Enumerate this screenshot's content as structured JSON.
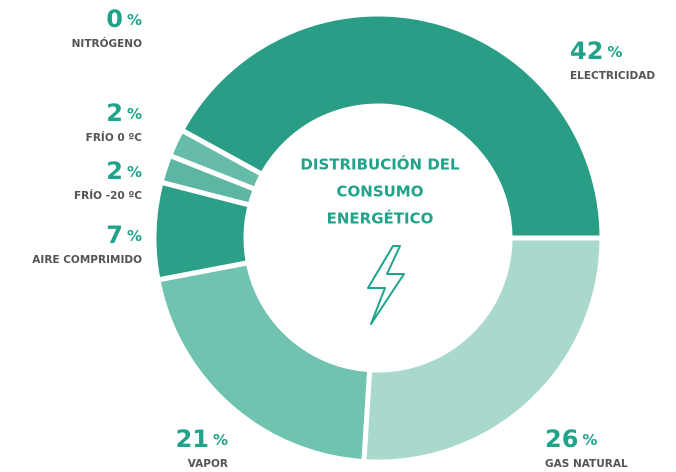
{
  "chart_data": {
    "type": "pie",
    "donut": true,
    "title": [
      "DISTRIBUCIÓN DEL",
      "CONSUMO",
      "ENERGÉTICO"
    ],
    "unit": "%",
    "categories": [
      "ELECTRICIDAD",
      "GAS NATURAL",
      "VAPOR",
      "AIRE COMPRIMIDO",
      "FRÍO -20 ºC",
      "FRÍO 0 ºC",
      "NITRÓGENO"
    ],
    "values": [
      42,
      26,
      21,
      7,
      2,
      2,
      0
    ],
    "colors": [
      "#2a9d87",
      "#a9d9cc",
      "#70c3ae",
      "#2c9f88",
      "#5db6a2",
      "#66bca8",
      "#2a9d87"
    ]
  }
}
